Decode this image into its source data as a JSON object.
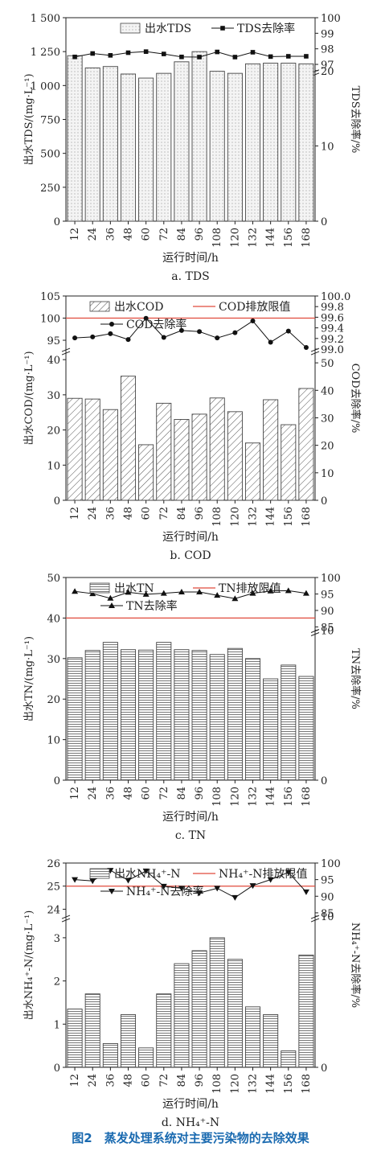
{
  "figure_caption": "图2　蒸发处理系统对主要污染物的去除效果",
  "colors": {
    "bar_fill": "#f1f1f1",
    "bar_stroke": "#444",
    "limit_line": "#e04a3c",
    "caption": "#1a6ab0"
  },
  "chart_data": [
    {
      "type": "bar",
      "subtitle": "a. TDS",
      "xlabel": "运行时间/h",
      "ylabel": "出水TDS/(mg·L⁻¹)",
      "ylabel_right": "TDS去除率/%",
      "categories": [
        "12",
        "24",
        "36",
        "48",
        "60",
        "72",
        "84",
        "96",
        "108",
        "120",
        "132",
        "144",
        "156",
        "168"
      ],
      "bar_pattern": "dots",
      "left_ticks": [
        "0",
        "250",
        "500",
        "750",
        "1 000",
        "1 250",
        "1 500"
      ],
      "right_ticks": [
        "0",
        "10",
        "20",
        "97",
        "98",
        "99",
        "100"
      ],
      "ylim": [
        0,
        1500
      ],
      "y2lim": [
        0,
        100
      ],
      "y2_axis_break": [
        20,
        96.6
      ],
      "series": [
        {
          "name": "出水TDS",
          "axis": "left",
          "values": [
            1220,
            1130,
            1140,
            1085,
            1055,
            1090,
            1175,
            1250,
            1105,
            1090,
            1160,
            1165,
            1165,
            1160
          ]
        },
        {
          "name": "TDS去除率",
          "axis": "right",
          "marker": "square",
          "values": [
            97.48,
            97.7,
            97.58,
            97.75,
            97.82,
            97.67,
            97.48,
            97.47,
            97.8,
            97.47,
            97.78,
            97.5,
            97.52,
            97.52
          ]
        }
      ],
      "legend": [
        "出水TDS",
        "TDS去除率"
      ]
    },
    {
      "type": "bar",
      "subtitle": "b. COD",
      "xlabel": "运行时间/h",
      "ylabel": "出水COD/(mg·L⁻¹)",
      "ylabel_right": "COD去除率/%",
      "categories": [
        "12",
        "24",
        "36",
        "48",
        "60",
        "72",
        "84",
        "96",
        "108",
        "120",
        "132",
        "144",
        "156",
        "168"
      ],
      "bar_pattern": "hatch",
      "left_ticks": [
        "0",
        "10",
        "20",
        "30",
        "40",
        "95",
        "100",
        "105"
      ],
      "right_ticks": [
        "0",
        "10",
        "20",
        "30",
        "40",
        "50",
        "99.0",
        "99.2",
        "99.4",
        "99.6",
        "99.8",
        "100.0"
      ],
      "ylim": [
        0,
        105
      ],
      "y_axis_break": [
        43,
        93
      ],
      "y2lim": [
        0,
        100
      ],
      "y2_axis_break": [
        55,
        99.0
      ],
      "limit_value": 100,
      "series": [
        {
          "name": "出水COD",
          "axis": "left",
          "values": [
            29.0,
            28.8,
            25.8,
            35.3,
            15.8,
            27.6,
            23.0,
            24.5,
            29.1,
            25.2,
            16.3,
            28.6,
            21.5,
            31.8
          ]
        },
        {
          "name": "COD去除率",
          "axis": "right",
          "marker": "circle",
          "values": [
            99.21,
            99.23,
            99.29,
            99.18,
            99.58,
            99.22,
            99.35,
            99.33,
            99.21,
            99.31,
            99.53,
            99.13,
            99.34,
            99.03
          ]
        }
      ],
      "legend": [
        "出水COD",
        "COD排放限值",
        "COD去除率"
      ]
    },
    {
      "type": "bar",
      "subtitle": "c. TN",
      "xlabel": "运行时间/h",
      "ylabel": "出水TN/(mg·L⁻¹)",
      "ylabel_right": "TN去除率/%",
      "categories": [
        "12",
        "24",
        "36",
        "48",
        "60",
        "72",
        "84",
        "96",
        "108",
        "120",
        "132",
        "144",
        "156",
        "168"
      ],
      "bar_pattern": "hlines",
      "left_ticks": [
        "0",
        "10",
        "20",
        "30",
        "40",
        "50"
      ],
      "right_ticks": [
        "0",
        "10",
        "85",
        "90",
        "95",
        "100"
      ],
      "ylim": [
        0,
        50
      ],
      "y2lim": [
        0,
        100
      ],
      "y2_axis_break": [
        10,
        84
      ],
      "limit_value": 40,
      "series": [
        {
          "name": "出水TN",
          "axis": "left",
          "values": [
            30.2,
            32.0,
            34.0,
            32.2,
            32.1,
            34.0,
            32.2,
            32.0,
            31.0,
            32.5,
            30.0,
            25.0,
            28.4,
            25.6
          ]
        },
        {
          "name": "TN去除率",
          "axis": "right",
          "marker": "triangle",
          "values": [
            95.8,
            95.1,
            93.7,
            95.5,
            94.9,
            95.2,
            95.6,
            95.6,
            94.6,
            93.6,
            95.2,
            95.9,
            96.0,
            95.2
          ]
        }
      ],
      "legend": [
        "出水TN",
        "TN排放限值",
        "TN去除率"
      ]
    },
    {
      "type": "bar",
      "subtitle": "d. NH₄⁺-N",
      "xlabel": "运行时间/h",
      "ylabel": "出水NH₄⁺-N/(mg·L⁻¹)",
      "ylabel_right": "NH₄⁺-N去除率/%",
      "categories": [
        "12",
        "24",
        "36",
        "48",
        "60",
        "72",
        "84",
        "96",
        "108",
        "120",
        "132",
        "144",
        "156",
        "168"
      ],
      "bar_pattern": "hlines",
      "left_ticks": [
        "0",
        "1",
        "2",
        "3",
        "24",
        "25",
        "26"
      ],
      "right_ticks": [
        "0",
        "10",
        "85",
        "90",
        "95",
        "100"
      ],
      "ylim": [
        0,
        26
      ],
      "y_axis_break": [
        3.5,
        23.7
      ],
      "y2lim": [
        0,
        100
      ],
      "y2_axis_break": [
        10,
        84
      ],
      "limit_value": 25,
      "series": [
        {
          "name": "出水NH₄⁺-N",
          "axis": "left",
          "values": [
            1.35,
            1.7,
            0.55,
            1.22,
            0.45,
            1.7,
            2.4,
            2.7,
            3.0,
            2.5,
            1.4,
            1.22,
            0.38,
            2.6
          ]
        },
        {
          "name": "NH₄⁺-N去除率",
          "axis": "right",
          "marker": "triangle-down",
          "values": [
            95.0,
            94.6,
            97.8,
            94.8,
            97.6,
            93.0,
            92.4,
            91.0,
            92.4,
            89.6,
            93.2,
            95.0,
            97.2,
            91.3
          ]
        }
      ],
      "legend": [
        "出水NH₄⁺-N",
        "NH₄⁺-N排放限值",
        "NH₄⁺-N去除率"
      ]
    }
  ]
}
